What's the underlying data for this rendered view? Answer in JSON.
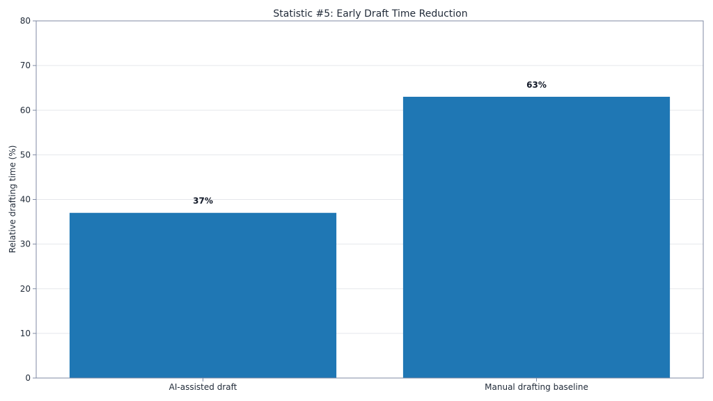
{
  "chart_data": {
    "type": "bar",
    "title": "Statistic #5: Early Draft Time Reduction",
    "xlabel": "",
    "ylabel": "Relative drafting time (%)",
    "categories": [
      "AI-assisted draft",
      "Manual drafting baseline"
    ],
    "values": [
      37,
      63
    ],
    "value_labels": [
      "37%",
      "63%"
    ],
    "ylim": [
      0,
      80
    ],
    "yticks": [
      0,
      10,
      20,
      30,
      40,
      50,
      60,
      70,
      80
    ],
    "ytick_labels": [
      "0",
      "10",
      "20",
      "30",
      "40",
      "50",
      "60",
      "70",
      "80"
    ],
    "grid": true,
    "bar_color": "#1f77b4",
    "grid_color": "#e5e7eb",
    "axis_color": "#7f8aa3"
  }
}
